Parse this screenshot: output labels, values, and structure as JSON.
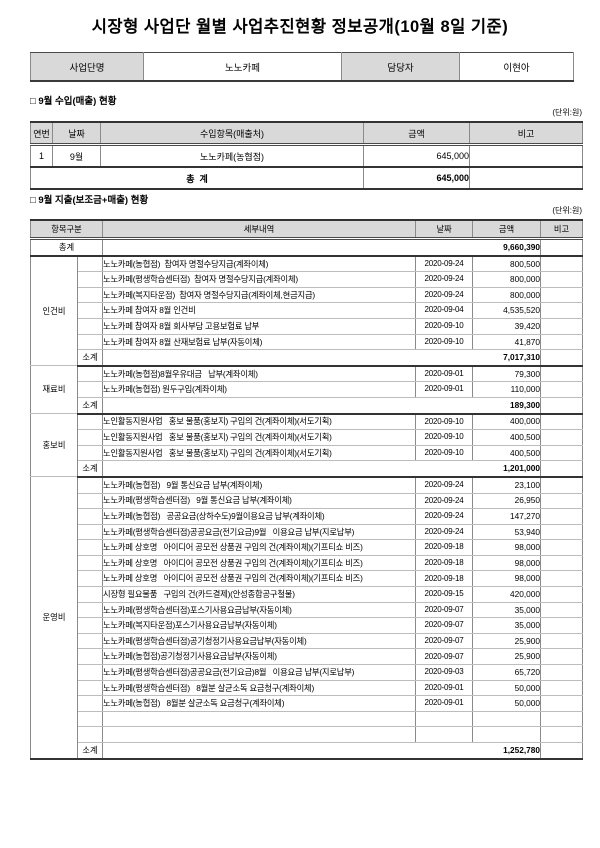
{
  "title": "시장형 사업단 월별 사업추진현황 정보공개(10월 8일 기준)",
  "info": {
    "org_label": "사업단명",
    "org_value": "노노카페",
    "manager_label": "담당자",
    "manager_value": "이현아"
  },
  "income_section": {
    "heading": "□ 9월 수입(매출) 현황",
    "unit": "(단위:원)",
    "headers": [
      "연번",
      "날짜",
      "수입항목(매출처)",
      "금액",
      "비고"
    ],
    "rows": [
      {
        "no": "1",
        "date": "9월",
        "item": "노노카페(농협점)",
        "amount": "645,000",
        "remark": ""
      }
    ],
    "total_label": "총  계",
    "total_amount": "645,000"
  },
  "expense_section": {
    "heading": "□ 9월 지출(보조금+매출) 현황",
    "unit": "(단위:원)",
    "headers": [
      "항목구분",
      "세부내역",
      "날짜",
      "금액",
      "비고"
    ],
    "grand_total_label": "총계",
    "grand_total_amount": "9,660,390",
    "subtotal_label": "소계",
    "groups": [
      {
        "name": "인건비",
        "items": [
          {
            "detail": "노노카페(농협점)  참여자 명절수당지급(계좌이체)",
            "date": "2020-09-24",
            "amount": "800,500"
          },
          {
            "detail": "노노카페(평생학습센터점)  참여자 명절수당지급(계좌이체)",
            "date": "2020-09-24",
            "amount": "800,000"
          },
          {
            "detail": "노노카페(복지타운점)  참여자 명절수당지급(계좌이체,현금지급)",
            "date": "2020-09-24",
            "amount": "800,000"
          },
          {
            "detail": "노노카페 참여자 8월 인건비",
            "date": "2020-09-04",
            "amount": "4,535,520"
          },
          {
            "detail": "노노카페 참여자 8월 회사부담 고용보험료 납부",
            "date": "2020-09-10",
            "amount": "39,420"
          },
          {
            "detail": "노노카페 참여자 8월 산재보험료 납부(자동이체)",
            "date": "2020-09-10",
            "amount": "41,870"
          }
        ],
        "subtotal": "7,017,310"
      },
      {
        "name": "재료비",
        "items": [
          {
            "detail": "노노카페(농협점)8월우유대금   납부(계좌이체)",
            "date": "2020-09-01",
            "amount": "79,300"
          },
          {
            "detail": "노노카페(농협점) 원두구입(계좌이체)",
            "date": "2020-09-01",
            "amount": "110,000"
          }
        ],
        "subtotal": "189,300"
      },
      {
        "name": "홍보비",
        "items": [
          {
            "detail": "노인활동지원사업   홍보 물품(홍보지) 구입의 건(계좌이체)(서도기획)",
            "date": "2020-09-10",
            "amount": "400,000"
          },
          {
            "detail": "노인활동지원사업   홍보 물품(홍보지) 구입의 건(계좌이체)(서도기획)",
            "date": "2020-09-10",
            "amount": "400,500"
          },
          {
            "detail": "노인활동지원사업   홍보 물품(홍보지) 구입의 건(계좌이체)(서도기획)",
            "date": "2020-09-10",
            "amount": "400,500"
          }
        ],
        "subtotal": "1,201,000"
      },
      {
        "name": "운영비",
        "items": [
          {
            "detail": "노노카페(농협점)   9월 통신요금 납부(계좌이체)",
            "date": "2020-09-24",
            "amount": "23,100"
          },
          {
            "detail": "노노카페(평생학습센터점)   9월 통신요금 납부(계좌이체)",
            "date": "2020-09-24",
            "amount": "26,950"
          },
          {
            "detail": "노노카페(농협점)   공공요금(상하수도)9월이용요금 납부(계좌이체)",
            "date": "2020-09-24",
            "amount": "147,270"
          },
          {
            "detail": "노노카페(평생학습센터점)공공요금(전기요금)9월   이용요금 납부(지로납부)",
            "date": "2020-09-24",
            "amount": "53,940"
          },
          {
            "detail": "노노카페 상호명   아이디어 공모전 상품권 구입의 건(계좌이체)(기프티쇼 비즈)",
            "date": "2020-09-18",
            "amount": "98,000"
          },
          {
            "detail": "노노카페 상호명   아이디어 공모전 상품권 구입의 건(계좌이체)(기프티쇼 비즈)",
            "date": "2020-09-18",
            "amount": "98,000"
          },
          {
            "detail": "노노카페 상호명   아이디어 공모전 상품권 구입의 건(계좌이체)(기프티쇼 비즈)",
            "date": "2020-09-18",
            "amount": "98,000"
          },
          {
            "detail": "시장형 필요물품   구입의 건(카드결제)(안성종합공구철물)",
            "date": "2020-09-15",
            "amount": "420,000"
          },
          {
            "detail": "노노카페(평생학습센터점)포스기사용요금납부(자동이체)",
            "date": "2020-09-07",
            "amount": "35,000"
          },
          {
            "detail": "노노카페(복지타운점)포스기사용요금납부(자동이체)",
            "date": "2020-09-07",
            "amount": "35,000"
          },
          {
            "detail": "노노카페(평생학습센터점)공기청정기사용요금납부(자동이체)",
            "date": "2020-09-07",
            "amount": "25,900"
          },
          {
            "detail": "노노카페(농협점)공기청정기사용요금납부(자동이체)",
            "date": "2020-09-07",
            "amount": "25,900"
          },
          {
            "detail": "노노카페(평생학습센터점)공공요금(전기요금)8월   이용요금 납부(지로납부)",
            "date": "2020-09-03",
            "amount": "65,720"
          },
          {
            "detail": "노노카페(평생학습센터점)   8월분 살균소독 요금청구(계좌이체)",
            "date": "2020-09-01",
            "amount": "50,000"
          },
          {
            "detail": "노노카페(농협점)   8월분 살균소독 요금청구(계좌이체)",
            "date": "2020-09-01",
            "amount": "50,000"
          },
          {
            "detail": "",
            "date": "",
            "amount": ""
          },
          {
            "detail": "",
            "date": "",
            "amount": ""
          }
        ],
        "subtotal": "1,252,780"
      }
    ]
  }
}
